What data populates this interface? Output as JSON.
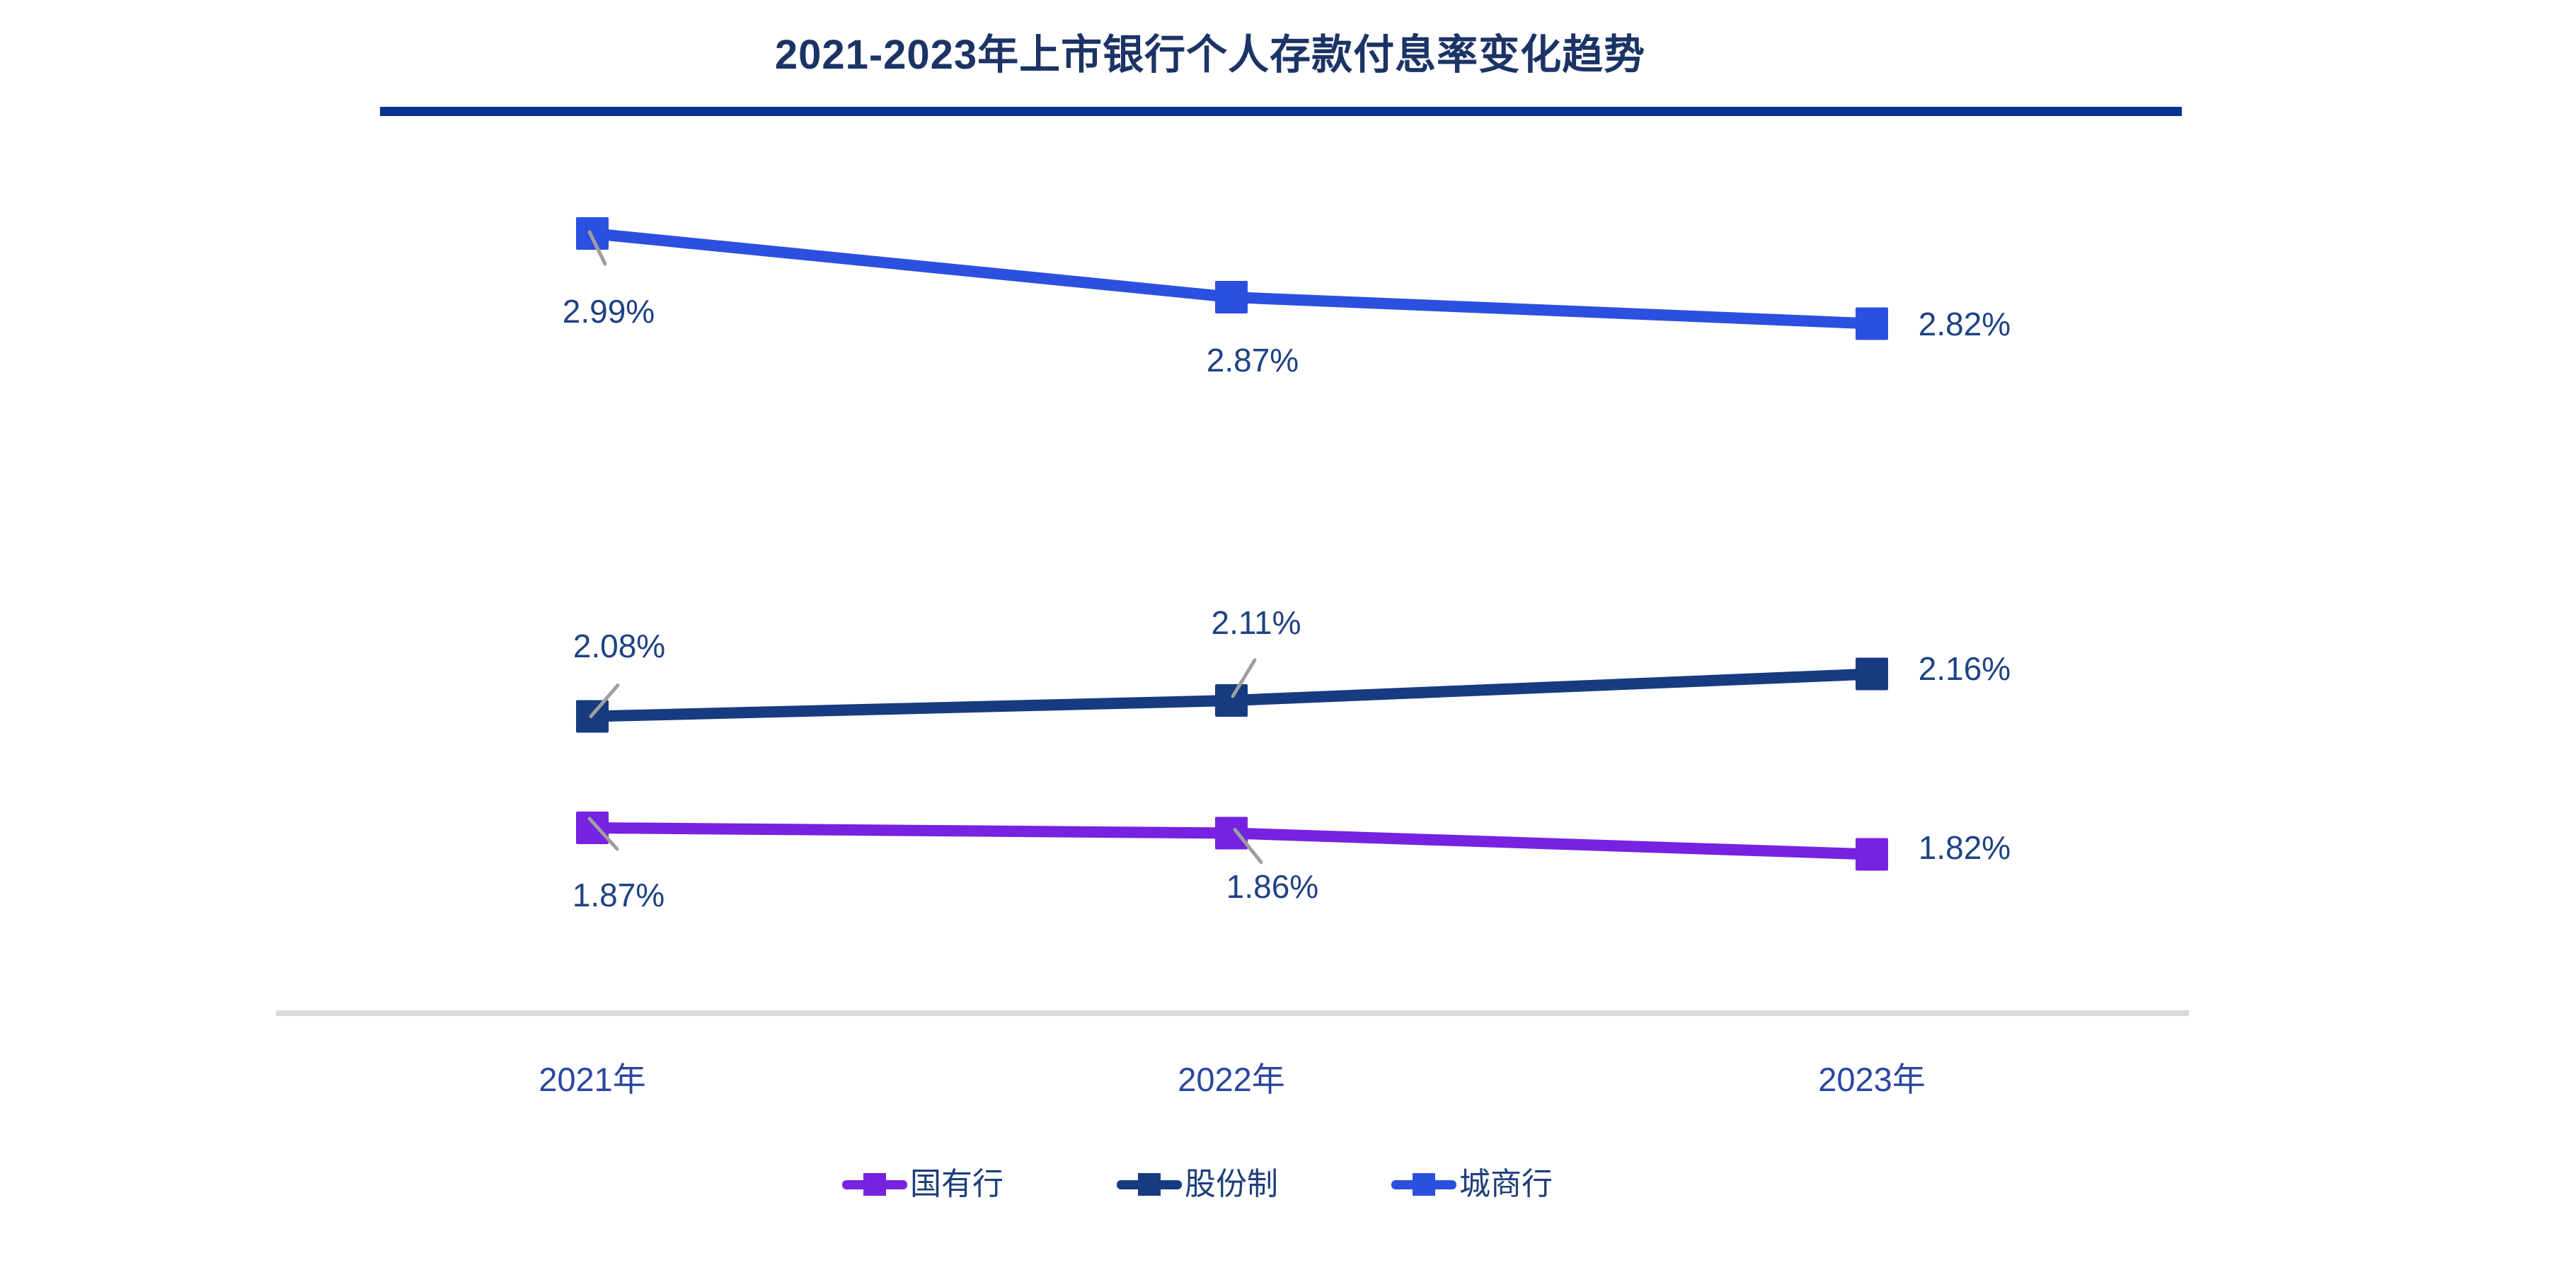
{
  "title": "2021-2023年上市银行个人存款付息率变化趋势",
  "chart_data": {
    "type": "line",
    "title": "2021-2023年上市银行个人存款付息率变化趋势",
    "categories": [
      "2021年",
      "2022年",
      "2023年"
    ],
    "series": [
      {
        "name": "国有行",
        "color": "#7622E0",
        "values": [
          1.87,
          1.86,
          1.82
        ],
        "labels": [
          "1.87%",
          "1.86%",
          "1.82%"
        ]
      },
      {
        "name": "股份制",
        "color": "#163B80",
        "values": [
          2.08,
          2.11,
          2.16
        ],
        "labels": [
          "2.08%",
          "2.11%",
          "2.16%"
        ]
      },
      {
        "name": "城商行",
        "color": "#2B50DF",
        "values": [
          2.99,
          2.87,
          2.82
        ],
        "labels": [
          "2.99%",
          "2.87%",
          "2.82%"
        ]
      }
    ],
    "ylim": [
      1.53,
      3.1
    ],
    "grid": false,
    "legend_position": "bottom",
    "value_suffix": "%",
    "marker": "square",
    "annotations": "leader lines connect moved data labels to their points"
  },
  "colors": {
    "title_text": "#1B3365",
    "divider": "#05328F",
    "data_label_text": "#1E4285",
    "axis_label_text": "#2A46A0",
    "legend_text": "#1E3E7C",
    "axis_line": "#D9D9D9",
    "leader_line": "#9E9E9E",
    "background": "#FFFFFF"
  }
}
